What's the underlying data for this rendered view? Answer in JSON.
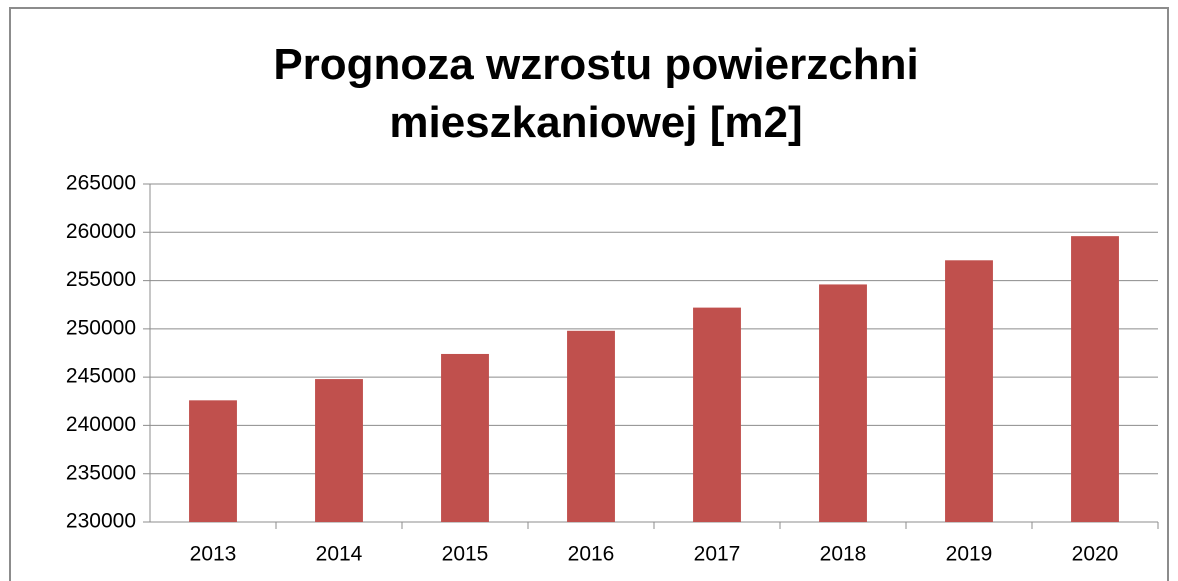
{
  "chart_data": {
    "type": "bar",
    "title": "Prognoza wzrostu powierzchni mieszkaniowej [m2]",
    "categories": [
      "2013",
      "2014",
      "2015",
      "2016",
      "2017",
      "2018",
      "2019",
      "2020"
    ],
    "values": [
      242600,
      244800,
      247400,
      249800,
      252200,
      254600,
      257100,
      259600
    ],
    "color": "#c0504d",
    "ylim": [
      230000,
      265000
    ],
    "yticks": [
      230000,
      235000,
      240000,
      245000,
      250000,
      255000,
      260000,
      265000
    ],
    "grid": true
  }
}
